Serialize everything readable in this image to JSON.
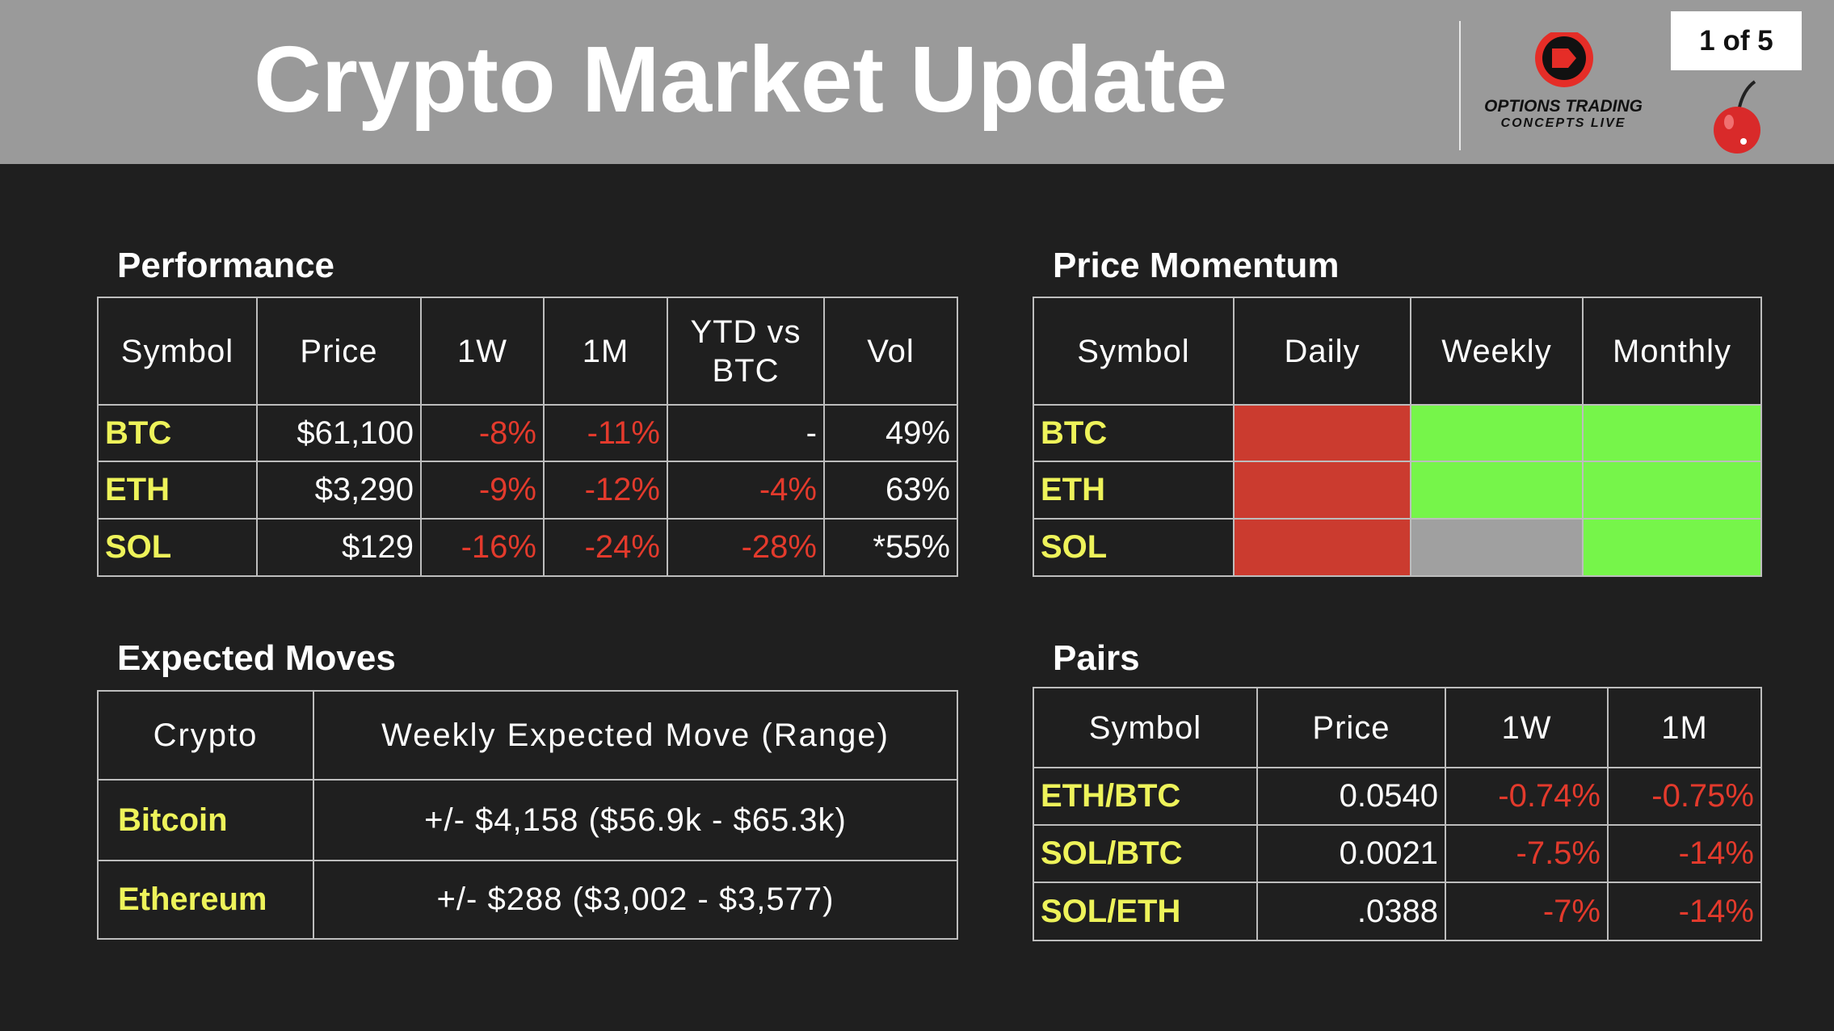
{
  "header": {
    "title": "Crypto Market Update",
    "page": "1 of 5",
    "logo_line1": "OPTIONS TRADING",
    "logo_line2": "CONCEPTS LIVE"
  },
  "performance": {
    "title": "Performance",
    "columns": [
      "Symbol",
      "Price",
      "1W",
      "1M",
      "YTD vs BTC",
      "Vol"
    ],
    "rows": [
      [
        "BTC",
        "$61,100",
        "-8%",
        "-11%",
        "-",
        "49%"
      ],
      [
        "ETH",
        "$3,290",
        "-9%",
        "-12%",
        "-4%",
        "63%"
      ],
      [
        "SOL",
        "$129",
        "-16%",
        "-24%",
        "-28%",
        "*55%"
      ]
    ]
  },
  "momentum": {
    "title": "Price Momentum",
    "columns": [
      "Symbol",
      "Daily",
      "Weekly",
      "Monthly"
    ],
    "rows": [
      {
        "symbol": "BTC",
        "colors": [
          "#cb3b2f",
          "#76f54a",
          "#76f54a"
        ]
      },
      {
        "symbol": "ETH",
        "colors": [
          "#cb3b2f",
          "#76f54a",
          "#76f54a"
        ]
      },
      {
        "symbol": "SOL",
        "colors": [
          "#cb3b2f",
          "#a0a0a0",
          "#76f54a"
        ]
      }
    ]
  },
  "expected_moves": {
    "title": "Expected Moves",
    "columns": [
      "Crypto",
      "Weekly Expected Move (Range)"
    ],
    "rows": [
      [
        "Bitcoin",
        "+/- $4,158 ($56.9k - $65.3k)"
      ],
      [
        "Ethereum",
        "+/- $288 ($3,002 - $3,577)"
      ]
    ]
  },
  "pairs": {
    "title": "Pairs",
    "columns": [
      "Symbol",
      "Price",
      "1W",
      "1M"
    ],
    "rows": [
      [
        "ETH/BTC",
        "0.0540",
        "-0.74%",
        "-0.75%"
      ],
      [
        "SOL/BTC",
        "0.0021",
        "-7.5%",
        "-14%"
      ],
      [
        "SOL/ETH",
        ".0388",
        "-7%",
        "-14%"
      ]
    ]
  }
}
